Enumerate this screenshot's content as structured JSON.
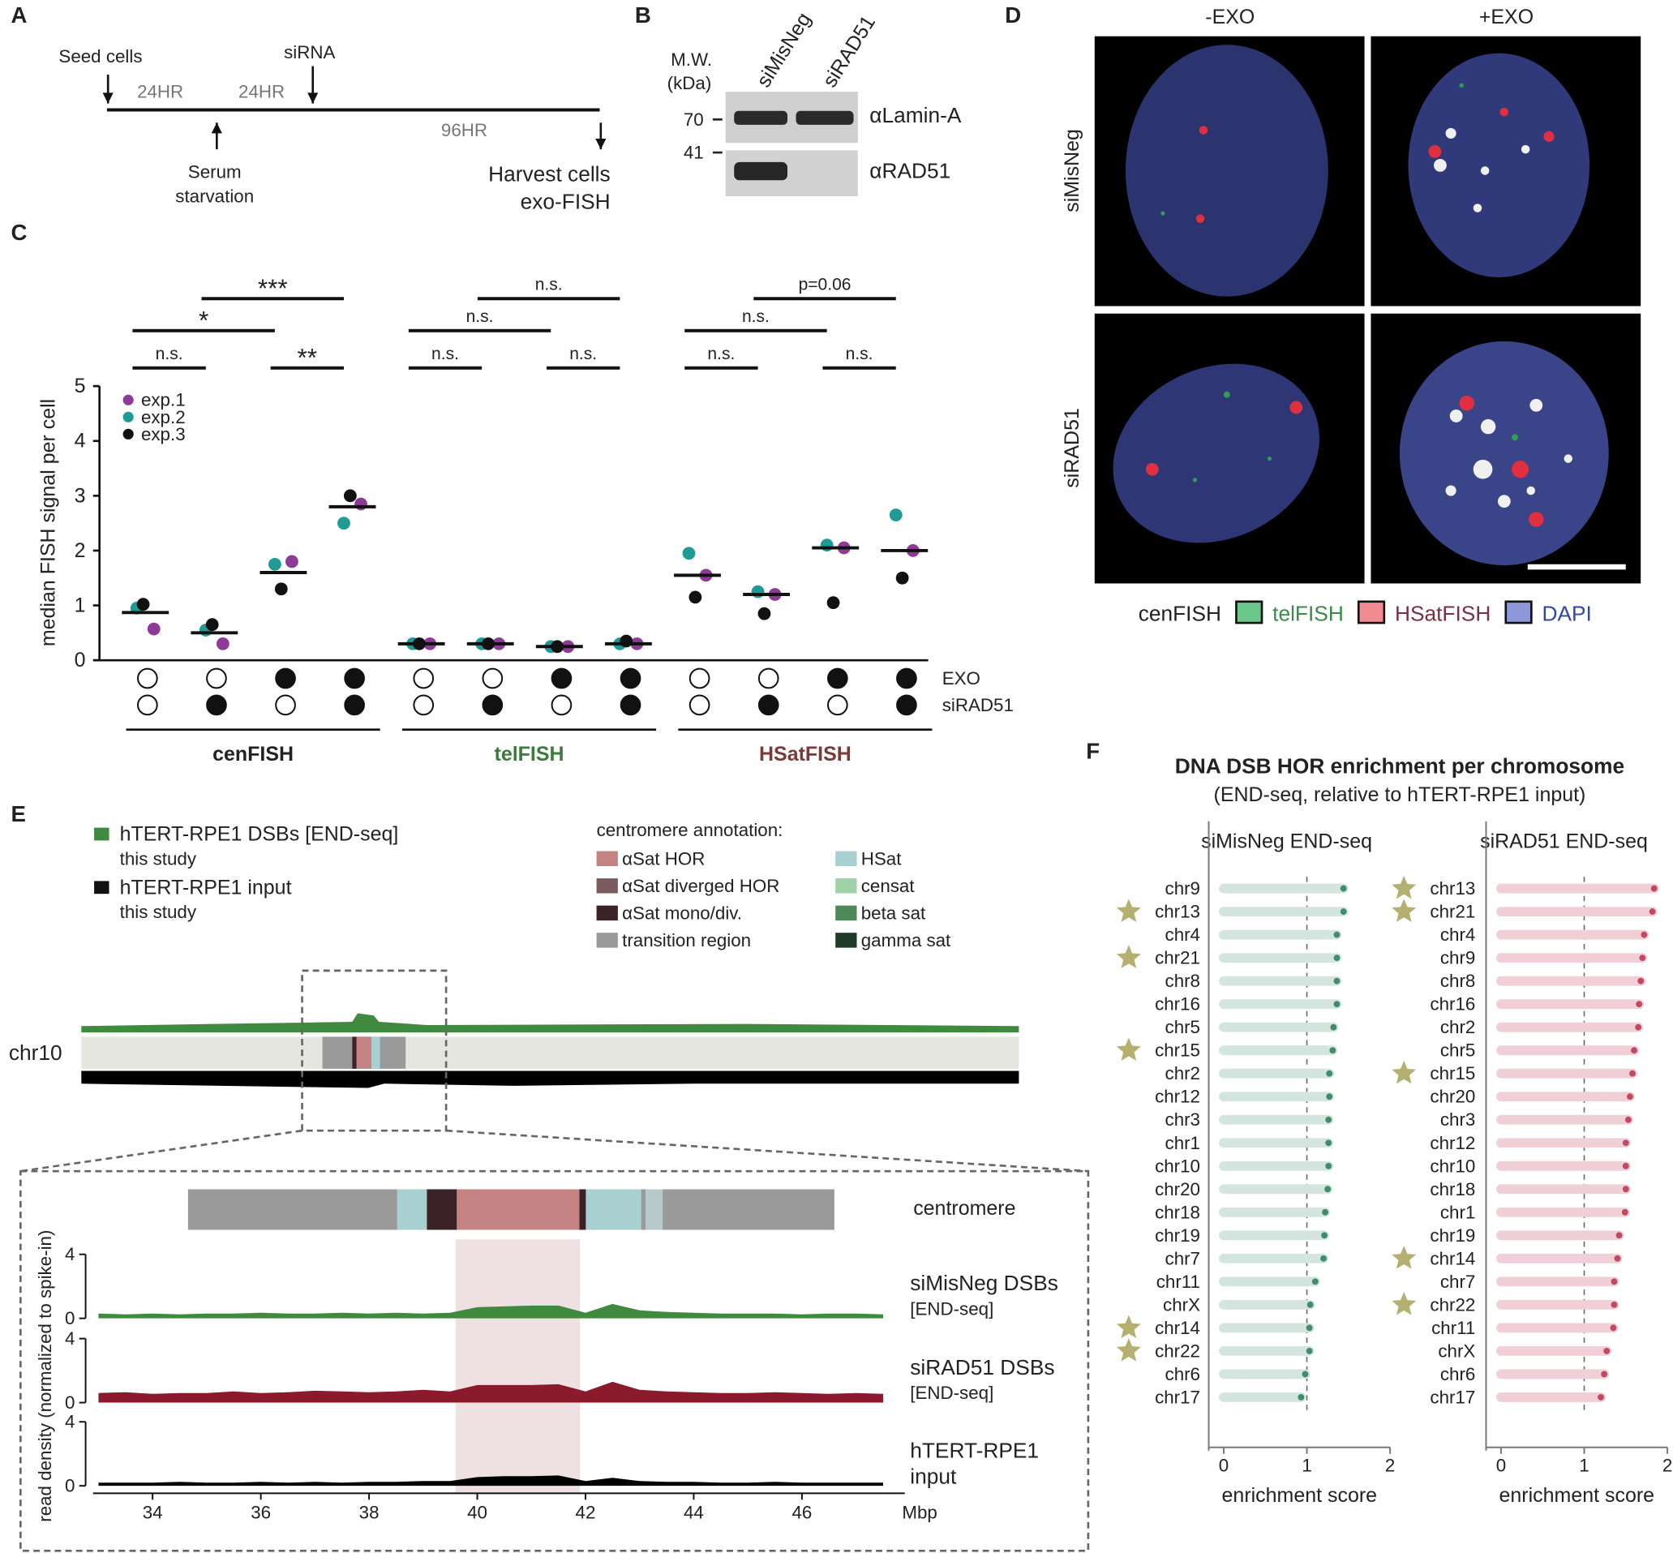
{
  "panel_labels": [
    "A",
    "B",
    "C",
    "D",
    "E",
    "F"
  ],
  "panel_a": {
    "seed_cells": "Seed cells",
    "interval_1": "24HR",
    "interval_2": "24HR",
    "sirna": "siRNA",
    "interval_3": "96HR",
    "serum": [
      "Serum",
      "starvation"
    ],
    "harvest": [
      "Harvest cells",
      "exo-FISH"
    ]
  },
  "panel_b": {
    "mw": [
      "M.W.",
      "(kDa)"
    ],
    "lanes": [
      "siMisNeg",
      "siRAD51"
    ],
    "markers": [
      "70",
      "41"
    ],
    "antibodies": [
      "αLamin-A",
      "αRAD51"
    ]
  },
  "panel_d": {
    "columns": [
      "-EXO",
      "+EXO"
    ],
    "rows": [
      "siMisNeg",
      "siRAD51"
    ],
    "legend": [
      {
        "name": "cenFISH",
        "text_color": "#222222"
      },
      {
        "name": "telFISH",
        "color": "#6cc78c",
        "text_color": "#3a8a4a"
      },
      {
        "name": "HSatFISH",
        "color": "#f28c92",
        "text_color": "#7a3040"
      },
      {
        "name": "DAPI",
        "color": "#8e98d8",
        "text_color": "#34479a"
      }
    ]
  },
  "panel_e": {
    "legend": [
      {
        "name": "hTERT-RPE1 DSBs [END-seq]",
        "note": "this study",
        "color": "#3f8a3f"
      },
      {
        "name": "hTERT-RPE1 input",
        "note": "this study",
        "color": "#111111"
      }
    ],
    "annotation_title": "centromere annotation:",
    "annotation": [
      {
        "name": "αSat HOR",
        "color": "#c48282"
      },
      {
        "name": "αSat diverged HOR",
        "color": "#7b5b5e"
      },
      {
        "name": "αSat mono/div.",
        "color": "#3b2226"
      },
      {
        "name": "transition region",
        "color": "#9a9a9a"
      },
      {
        "name": "HSat",
        "color": "#a8d0d0"
      },
      {
        "name": "censat",
        "color": "#9fd3a7"
      },
      {
        "name": "beta sat",
        "color": "#4e8a58"
      },
      {
        "name": "gamma sat",
        "color": "#1e3b26"
      }
    ],
    "chromosome": "chr10",
    "centromere_label": "centromere"
  },
  "panel_f": {
    "title": "DNA DSB HOR enrichment per chromosome",
    "subtitle": "(END-seq, relative to hTERT-RPE1 input)"
  },
  "chart_data": [
    {
      "type": "strip",
      "ylabel": "median FISH signal per cell",
      "ylim": [
        0,
        5
      ],
      "yticks": [
        0,
        1,
        2,
        3,
        4,
        5
      ],
      "series": [
        {
          "name": "exp.1",
          "color": "#8e3b98",
          "values": [
            0.57,
            0.3,
            1.8,
            2.85,
            0.3,
            0.3,
            0.25,
            0.3,
            1.55,
            1.2,
            2.05,
            2.0
          ]
        },
        {
          "name": "exp.2",
          "color": "#1f9a94",
          "values": [
            0.95,
            0.55,
            1.75,
            2.5,
            0.3,
            0.3,
            0.25,
            0.3,
            1.95,
            1.25,
            2.1,
            2.65
          ]
        },
        {
          "name": "exp.3",
          "color": "#111111",
          "values": [
            1.02,
            0.65,
            1.3,
            3.0,
            0.3,
            0.3,
            0.25,
            0.35,
            1.15,
            0.85,
            1.05,
            1.5
          ]
        }
      ],
      "medians": [
        0.87,
        0.5,
        1.6,
        2.8,
        0.3,
        0.3,
        0.25,
        0.3,
        1.55,
        1.2,
        2.05,
        2.0
      ],
      "groups": [
        {
          "name": "cenFISH",
          "color": "#222222"
        },
        {
          "name": "telFISH",
          "color": "#3d7a3d"
        },
        {
          "name": "HSatFISH",
          "color": "#7b3a3a"
        }
      ],
      "conditions": [
        {
          "name": "EXO",
          "values": [
            false,
            false,
            true,
            true,
            false,
            false,
            true,
            true,
            false,
            false,
            true,
            true
          ]
        },
        {
          "name": "siRAD51",
          "values": [
            false,
            true,
            false,
            true,
            false,
            true,
            false,
            true,
            false,
            true,
            false,
            true
          ]
        }
      ],
      "significance": [
        "n.s.",
        "**",
        "*",
        "***",
        "n.s.",
        "n.s.",
        "n.s.",
        "n.s.",
        "n.s.",
        "n.s.",
        "n.s.",
        "p=0.06"
      ]
    },
    {
      "type": "lollipop",
      "title": "siMisNeg END-seq",
      "xlabel": "enrichment score",
      "xlim": [
        -0.18,
        2
      ],
      "xticks": [
        0,
        1,
        2
      ],
      "reference": 1,
      "color": "#d4e5dd",
      "dot_color": "#3f8d6b",
      "star_color": "#b5b070",
      "categories": [
        "chr9",
        "chr13",
        "chr4",
        "chr21",
        "chr8",
        "chr16",
        "chr5",
        "chr15",
        "chr2",
        "chr12",
        "chr3",
        "chr1",
        "chr10",
        "chr20",
        "chr18",
        "chr19",
        "chr7",
        "chr11",
        "chrX",
        "chr14",
        "chr22",
        "chr6",
        "chr17"
      ],
      "values": [
        1.44,
        1.44,
        1.36,
        1.36,
        1.36,
        1.36,
        1.32,
        1.31,
        1.27,
        1.27,
        1.26,
        1.26,
        1.26,
        1.25,
        1.22,
        1.21,
        1.2,
        1.1,
        1.04,
        1.03,
        1.03,
        0.98,
        0.93
      ],
      "highlight": [
        false,
        true,
        false,
        true,
        false,
        false,
        false,
        true,
        false,
        false,
        false,
        false,
        false,
        false,
        false,
        false,
        false,
        false,
        false,
        true,
        true,
        false,
        false
      ]
    },
    {
      "type": "lollipop",
      "title": "siRAD51 END-seq",
      "xlabel": "enrichment score",
      "xlim": [
        -0.18,
        2
      ],
      "xticks": [
        0,
        1,
        2
      ],
      "reference": 1,
      "color": "#f0cfd6",
      "dot_color": "#c2495f",
      "star_color": "#b5b070",
      "categories": [
        "chr13",
        "chr21",
        "chr4",
        "chr9",
        "chr8",
        "chr16",
        "chr2",
        "chr5",
        "chr15",
        "chr20",
        "chr3",
        "chr12",
        "chr10",
        "chr18",
        "chr1",
        "chr19",
        "chr14",
        "chr7",
        "chr22",
        "chr11",
        "chrX",
        "chr6",
        "chr17"
      ],
      "values": [
        1.84,
        1.82,
        1.72,
        1.7,
        1.68,
        1.66,
        1.65,
        1.6,
        1.58,
        1.55,
        1.53,
        1.5,
        1.5,
        1.5,
        1.49,
        1.42,
        1.4,
        1.36,
        1.36,
        1.35,
        1.27,
        1.24,
        1.2
      ],
      "highlight": [
        true,
        true,
        false,
        false,
        false,
        false,
        false,
        false,
        true,
        false,
        false,
        false,
        false,
        false,
        false,
        false,
        true,
        false,
        true,
        false,
        false,
        false,
        false
      ]
    },
    {
      "type": "tracks",
      "xlabel": "Mbp",
      "ylabel": "read density (normalized to spike-in)",
      "xlim": [
        32.9,
        47.9
      ],
      "xticks": [
        34,
        36,
        38,
        40,
        42,
        44,
        46
      ],
      "ylim": [
        0,
        4
      ],
      "yticks": [
        0,
        4
      ],
      "highlight": [
        39.6,
        41.9
      ],
      "x": [
        33,
        33.5,
        34,
        34.5,
        35,
        35.5,
        36,
        36.5,
        37,
        37.5,
        38,
        38.5,
        39,
        39.5,
        40,
        40.5,
        41,
        41.5,
        42,
        42.5,
        43,
        43.5,
        44,
        44.5,
        45,
        45.5,
        46,
        46.5,
        47,
        47.5
      ],
      "series": [
        {
          "name": "siMisNeg DSBs",
          "subname": "[END-seq]",
          "color": "#3f8a3f",
          "values": [
            0.3,
            0.25,
            0.3,
            0.25,
            0.3,
            0.3,
            0.35,
            0.3,
            0.3,
            0.35,
            0.3,
            0.35,
            0.3,
            0.35,
            0.7,
            0.75,
            0.8,
            0.8,
            0.35,
            0.9,
            0.5,
            0.4,
            0.35,
            0.3,
            0.3,
            0.3,
            0.25,
            0.3,
            0.3,
            0.25
          ]
        },
        {
          "name": "siRAD51 DSBs",
          "subname": "[END-seq]",
          "color": "#8b1a2c",
          "values": [
            0.6,
            0.65,
            0.55,
            0.6,
            0.6,
            0.7,
            0.6,
            0.65,
            0.75,
            0.7,
            0.65,
            0.7,
            0.8,
            0.7,
            1.1,
            1.1,
            1.1,
            1.15,
            0.7,
            1.3,
            0.8,
            0.7,
            0.65,
            0.6,
            0.6,
            0.65,
            0.6,
            0.55,
            0.6,
            0.55
          ]
        },
        {
          "name": "hTERT-RPE1",
          "subname": "input",
          "color": "#000000",
          "values": [
            0.2,
            0.2,
            0.2,
            0.25,
            0.2,
            0.2,
            0.25,
            0.2,
            0.25,
            0.2,
            0.25,
            0.25,
            0.3,
            0.3,
            0.55,
            0.6,
            0.6,
            0.65,
            0.3,
            0.5,
            0.3,
            0.25,
            0.25,
            0.2,
            0.2,
            0.25,
            0.2,
            0.2,
            0.2,
            0.2
          ]
        }
      ]
    }
  ]
}
